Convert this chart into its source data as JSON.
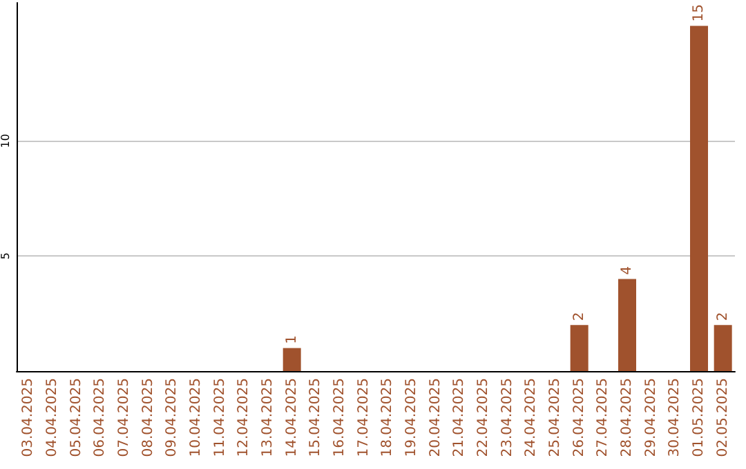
{
  "chart_data": {
    "type": "bar",
    "categories": [
      "03.04.2025",
      "04.04.2025",
      "05.04.2025",
      "06.04.2025",
      "07.04.2025",
      "08.04.2025",
      "09.04.2025",
      "10.04.2025",
      "11.04.2025",
      "12.04.2025",
      "13.04.2025",
      "14.04.2025",
      "15.04.2025",
      "16.04.2025",
      "17.04.2025",
      "18.04.2025",
      "19.04.2025",
      "20.04.2025",
      "21.04.2025",
      "22.04.2025",
      "23.04.2025",
      "24.04.2025",
      "25.04.2025",
      "26.04.2025",
      "27.04.2025",
      "28.04.2025",
      "29.04.2025",
      "30.04.2025",
      "01.05.2025",
      "02.05.2025"
    ],
    "values": [
      0,
      0,
      0,
      0,
      0,
      0,
      0,
      0,
      0,
      0,
      0,
      1,
      0,
      0,
      0,
      0,
      0,
      0,
      0,
      0,
      0,
      0,
      0,
      2,
      0,
      4,
      0,
      0,
      15,
      2
    ],
    "value_labels": [
      null,
      null,
      null,
      null,
      null,
      null,
      null,
      null,
      null,
      null,
      null,
      "1",
      null,
      null,
      null,
      null,
      null,
      null,
      null,
      null,
      null,
      null,
      null,
      "2",
      null,
      "4",
      null,
      null,
      "15",
      "2"
    ],
    "color": "#a0522d",
    "ylim": [
      0,
      16
    ],
    "yticks": [
      5,
      10
    ],
    "grid": "y"
  }
}
